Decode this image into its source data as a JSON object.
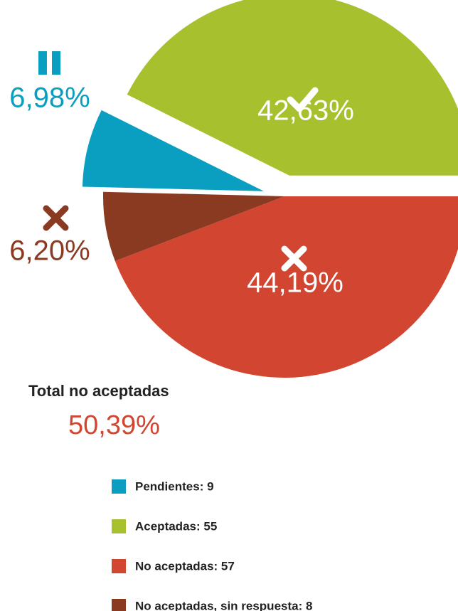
{
  "chart_data": {
    "type": "pie",
    "categories": [
      "Pendientes: 9",
      "Aceptadas: 55",
      "No aceptadas: 57",
      "No aceptadas, sin respuesta: 8"
    ],
    "values": [
      6.98,
      42.63,
      44.19,
      6.2
    ],
    "value_labels": [
      "6,98%",
      "42,63%",
      "44,19%",
      "6,20%"
    ],
    "colors": [
      "#0a9fc1",
      "#a7c12e",
      "#d14531",
      "#8b3a22"
    ],
    "annotation": {
      "title": "Total no aceptadas",
      "value_label": "50,39%"
    }
  }
}
